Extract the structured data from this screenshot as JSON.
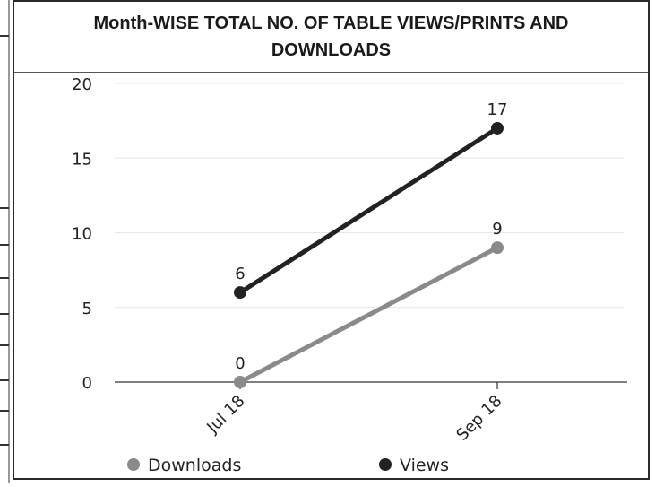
{
  "chart_data": {
    "type": "line",
    "title": "Month-WISE TOTAL NO. OF TABLE VIEWS/PRINTS AND DOWNLOADS",
    "categories": [
      "Jul 18",
      "Sep 18"
    ],
    "series": [
      {
        "name": "Downloads",
        "values": [
          0,
          9
        ],
        "color": "#8a8a8a"
      },
      {
        "name": "Views",
        "values": [
          6,
          17
        ],
        "color": "#222222"
      }
    ],
    "ylim": [
      0,
      20
    ],
    "yticks": [
      "0",
      "5",
      "10",
      "15",
      "20"
    ],
    "xlabel": "",
    "ylabel": "",
    "grid": true,
    "legend": "bottom"
  }
}
